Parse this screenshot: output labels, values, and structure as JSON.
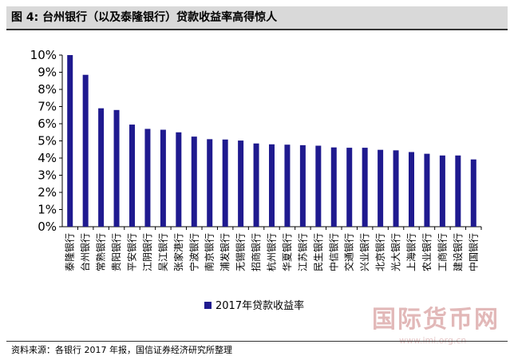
{
  "header": {
    "title": "图 4:  台州银行（以及泰隆银行）贷款收益率高得惊人"
  },
  "footer": {
    "source": "资料来源：各银行 2017 年报，国信证券经济研究所整理"
  },
  "watermark": {
    "text": "国际货币网",
    "url": "www.imi.org.cn"
  },
  "colors": {
    "bar": "#1f1a8f",
    "axis": "#000000",
    "background": "#ffffff"
  },
  "chart_data": {
    "type": "bar",
    "categories": [
      "泰隆银行",
      "台州银行",
      "常熟银行",
      "贵阳银行",
      "平安银行",
      "江阴银行",
      "吴江银行",
      "张家港行",
      "宁波银行",
      "南京银行",
      "浦发银行",
      "无锡银行",
      "招商银行",
      "杭州银行",
      "华夏银行",
      "江苏银行",
      "民生银行",
      "中信银行",
      "交通银行",
      "兴业银行",
      "北京银行",
      "光大银行",
      "上海银行",
      "农业银行",
      "工商银行",
      "建设银行",
      "中国银行"
    ],
    "series": [
      {
        "name": "2017年贷款收益率",
        "values": [
          10.0,
          8.85,
          6.9,
          6.8,
          5.95,
          5.7,
          5.65,
          5.5,
          5.25,
          5.1,
          5.08,
          5.02,
          4.85,
          4.8,
          4.78,
          4.75,
          4.72,
          4.62,
          4.6,
          4.6,
          4.48,
          4.45,
          4.35,
          4.25,
          4.15,
          4.15,
          3.92
        ]
      }
    ],
    "y_ticks": [
      "0%",
      "1%",
      "2%",
      "3%",
      "4%",
      "5%",
      "6%",
      "7%",
      "8%",
      "9%",
      "10%"
    ],
    "ylim": [
      0,
      10
    ],
    "grid": false,
    "legend_position": "bottom-center"
  }
}
